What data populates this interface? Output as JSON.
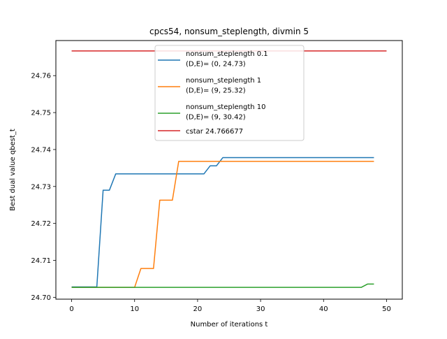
{
  "chart_data": {
    "type": "line",
    "title": "cpcs54, nonsum_steplength, divmin 5",
    "xlabel": "Number of iterations t",
    "ylabel": "Best dual value qbest_t",
    "xlim": [
      -2.5,
      52.5
    ],
    "ylim": [
      24.6995,
      24.7695
    ],
    "xticks": [
      0,
      10,
      20,
      30,
      40,
      50
    ],
    "yticks": [
      24.7,
      24.71,
      24.72,
      24.73,
      24.74,
      24.75,
      24.76
    ],
    "xtick_labels": [
      "0",
      "10",
      "20",
      "30",
      "40",
      "50"
    ],
    "ytick_labels": [
      "24.70",
      "24.71",
      "24.72",
      "24.73",
      "24.74",
      "24.75",
      "24.76"
    ],
    "grid": false,
    "legend_position": "top-center",
    "series": [
      {
        "name": "nonsum_steplength 0.1",
        "legend_lines": [
          "nonsum_steplength 0.1",
          "(D,E)= (0, 24.73)"
        ],
        "color": "#1f77b4",
        "x": [
          0,
          4,
          5,
          6,
          7,
          21,
          22,
          23,
          24,
          48
        ],
        "y": [
          24.7028,
          24.7028,
          24.729,
          24.729,
          24.7334,
          24.7334,
          24.7356,
          24.7356,
          24.7378,
          24.7378
        ]
      },
      {
        "name": "nonsum_steplength 1",
        "legend_lines": [
          "nonsum_steplength 1",
          "(D,E)= (9, 25.32)"
        ],
        "color": "#ff7f0e",
        "x": [
          0,
          10,
          11,
          13,
          14,
          16,
          17,
          48
        ],
        "y": [
          24.7027,
          24.7027,
          24.7078,
          24.7078,
          24.7263,
          24.7263,
          24.7368,
          24.7368
        ]
      },
      {
        "name": "nonsum_steplength 10",
        "legend_lines": [
          "nonsum_steplength 10",
          "(D,E)= (9, 30.42)"
        ],
        "color": "#2ca02c",
        "x": [
          0,
          46,
          47,
          48
        ],
        "y": [
          24.7027,
          24.7027,
          24.7036,
          24.7036
        ]
      },
      {
        "name": "cstar 24.766677",
        "legend_lines": [
          "cstar 24.766677"
        ],
        "color": "#d62728",
        "x": [
          0,
          50
        ],
        "y": [
          24.766677,
          24.766677
        ]
      }
    ]
  }
}
